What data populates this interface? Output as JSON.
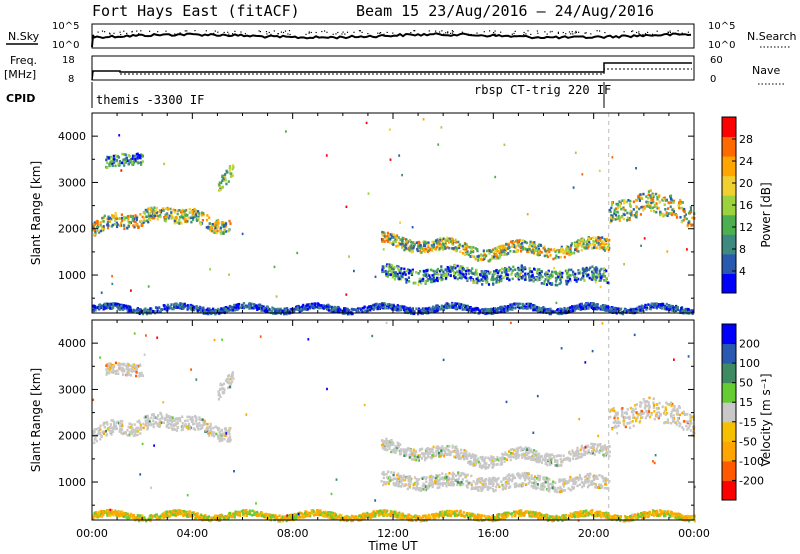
{
  "header": {
    "title": "Fort Hays East (fitACF)",
    "beam": "Beam 15 23/Aug/2016 – 24/Aug/2016"
  },
  "strip_panels": {
    "nsky_label": "N.Sky",
    "nsky_ticks": [
      "10^5",
      "10^0"
    ],
    "nsearch_label": "N.Search",
    "nsearch_ticks": [
      "10^5",
      "10^0"
    ],
    "freq_label": "Freq.",
    "freq_unit": "[MHz]",
    "freq_ticks": [
      "18",
      "8"
    ],
    "nave_label": "Nave",
    "nave_ticks": [
      "60",
      "0"
    ],
    "cpid_label": "CPID",
    "cpid_segments": [
      {
        "label": "themis -3300 IF",
        "start_hour": 0.0,
        "end_hour": 20.6
      },
      {
        "label": "rbsp CT-trig 220 IF",
        "start_hour": 20.6,
        "end_hour": 24.0
      }
    ]
  },
  "colors": {
    "power": [
      "#0000ff",
      "#2a5ab0",
      "#3f8a80",
      "#4caf50",
      "#9bd23d",
      "#f0d030",
      "#ffa500",
      "#ff6a00",
      "#ff0000"
    ],
    "velocity": [
      "#ff0000",
      "#ff5a00",
      "#ffa500",
      "#f5c000",
      "#c8c8c8",
      "#66cc33",
      "#3f8a60",
      "#2a5ab0",
      "#0000ff"
    ],
    "frame": "#000000"
  },
  "chart_data": [
    {
      "type": "heatmap",
      "title": "Power",
      "xlabel": "Time UT",
      "ylabel": "Slant Range [km]",
      "x_ticks": [
        "00:00",
        "04:00",
        "08:00",
        "12:00",
        "16:00",
        "20:00",
        "00:00"
      ],
      "xlim_hours": [
        0,
        24
      ],
      "y_ticks": [
        "1000",
        "2000",
        "3000",
        "4000"
      ],
      "ylim": [
        180,
        4500
      ],
      "colorbar": {
        "label": "Power [dB]",
        "ticks": [
          "4",
          "8",
          "12",
          "16",
          "20",
          "24",
          "28"
        ],
        "range": [
          0,
          30
        ]
      },
      "scatter_bands": [
        {
          "start_hour": 0.0,
          "end_hour": 5.5,
          "center_km_start": 2000,
          "center_km_end": 2050,
          "dip_km": 300,
          "width_km": 300,
          "dominant": "green-orange"
        },
        {
          "start_hour": 0.5,
          "end_hour": 2.0,
          "center_km_start": 3400,
          "center_km_end": 3600,
          "dip_km": 0,
          "width_km": 250,
          "dominant": "blue-green"
        },
        {
          "start_hour": 5.0,
          "end_hour": 5.6,
          "center_km_start": 3000,
          "center_km_end": 3300,
          "dip_km": 0,
          "width_km": 300,
          "dominant": "green"
        },
        {
          "start_hour": 11.5,
          "end_hour": 20.6,
          "center_km_start": 1800,
          "center_km_end": 1700,
          "dip_km": -200,
          "width_km": 250,
          "dominant": "blue-green-orange"
        },
        {
          "start_hour": 11.5,
          "end_hour": 20.6,
          "center_km_start": 1050,
          "center_km_end": 1000,
          "dip_km": 0,
          "width_km": 300,
          "dominant": "blue-green"
        },
        {
          "start_hour": 20.6,
          "end_hour": 24.0,
          "center_km_start": 2400,
          "center_km_end": 2300,
          "dip_km": 200,
          "width_km": 450,
          "dominant": "orange-green"
        },
        {
          "start_hour": 0.0,
          "end_hour": 24.0,
          "center_km_start": 300,
          "center_km_end": 300,
          "dip_km": 0,
          "width_km": 120,
          "dominant": "blue"
        }
      ]
    },
    {
      "type": "heatmap",
      "title": "Velocity",
      "xlabel": "Time UT",
      "ylabel": "Slant Range [km]",
      "x_ticks": [
        "00:00",
        "04:00",
        "08:00",
        "12:00",
        "16:00",
        "20:00",
        "00:00"
      ],
      "xlim_hours": [
        0,
        24
      ],
      "y_ticks": [
        "1000",
        "2000",
        "3000",
        "4000"
      ],
      "ylim": [
        180,
        4500
      ],
      "colorbar": {
        "label": "Velocity [m s⁻¹]",
        "ticks": [
          "-200",
          "-100",
          "-50",
          "-15",
          "15",
          "50",
          "100",
          "200"
        ],
        "range": [
          -250,
          250
        ]
      },
      "scatter_bands": [
        {
          "start_hour": 0.0,
          "end_hour": 5.5,
          "center_km_start": 2000,
          "center_km_end": 2050,
          "dip_km": 300,
          "width_km": 300,
          "dominant": "gray"
        },
        {
          "start_hour": 0.5,
          "end_hour": 2.0,
          "center_km_start": 3400,
          "center_km_end": 3500,
          "dip_km": 0,
          "width_km": 250,
          "dominant": "gray-orange"
        },
        {
          "start_hour": 5.0,
          "end_hour": 5.6,
          "center_km_start": 3000,
          "center_km_end": 3300,
          "dip_km": 0,
          "width_km": 300,
          "dominant": "gray"
        },
        {
          "start_hour": 11.5,
          "end_hour": 20.6,
          "center_km_start": 1800,
          "center_km_end": 1700,
          "dip_km": -200,
          "width_km": 250,
          "dominant": "gray"
        },
        {
          "start_hour": 11.5,
          "end_hour": 20.6,
          "center_km_start": 1050,
          "center_km_end": 1000,
          "dip_km": 0,
          "width_km": 300,
          "dominant": "gray"
        },
        {
          "start_hour": 20.6,
          "end_hour": 24.0,
          "center_km_start": 2400,
          "center_km_end": 2300,
          "dip_km": 200,
          "width_km": 450,
          "dominant": "gray-orange"
        },
        {
          "start_hour": 0.0,
          "end_hour": 24.0,
          "center_km_start": 300,
          "center_km_end": 300,
          "dip_km": 0,
          "width_km": 120,
          "dominant": "orange-green"
        }
      ]
    }
  ]
}
